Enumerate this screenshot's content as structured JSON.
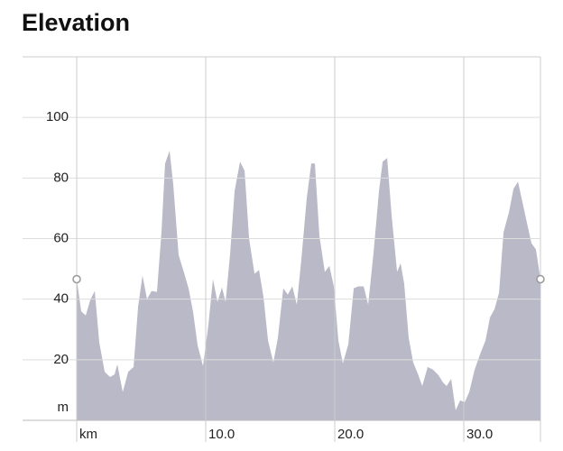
{
  "chart_data": {
    "type": "area",
    "title": "Elevation",
    "x": [
      0,
      0.35,
      0.7,
      1.05,
      1.4,
      1.75,
      2.17,
      2.59,
      2.94,
      3.15,
      3.57,
      3.99,
      4.41,
      4.76,
      5.1,
      5.45,
      5.8,
      6.22,
      6.57,
      6.85,
      7.2,
      7.48,
      7.9,
      8.32,
      8.67,
      9.02,
      9.37,
      9.79,
      10.21,
      10.56,
      10.91,
      11.26,
      11.54,
      11.89,
      12.24,
      12.66,
      13.01,
      13.36,
      13.78,
      14.13,
      14.48,
      14.83,
      15.24,
      15.59,
      16.01,
      16.36,
      16.71,
      17.06,
      17.41,
      17.83,
      18.18,
      18.46,
      18.81,
      19.23,
      19.58,
      19.93,
      20.28,
      20.63,
      21.05,
      21.47,
      21.82,
      22.24,
      22.59,
      23.01,
      23.43,
      23.71,
      24.06,
      24.41,
      24.83,
      25.1,
      25.38,
      25.73,
      26.08,
      26.43,
      26.78,
      27.2,
      27.62,
      28.04,
      28.39,
      28.67,
      29.02,
      29.37,
      29.72,
      30.07,
      30.42,
      30.84,
      31.26,
      31.68,
      32.03,
      32.38,
      32.73,
      33.08,
      33.5,
      33.85,
      34.2,
      34.55,
      34.9,
      35.24,
      35.59,
      35.94
    ],
    "values": [
      46.6,
      36,
      34.6,
      39.7,
      42.7,
      25.7,
      16,
      14.3,
      15.2,
      18.5,
      9.3,
      16,
      17.6,
      37.6,
      47.8,
      40,
      42.7,
      42.4,
      62,
      84.8,
      89,
      78,
      54.6,
      48.7,
      43.6,
      35.8,
      24.8,
      17.9,
      31.6,
      46.6,
      39.1,
      43.9,
      39.1,
      54.9,
      75.8,
      85.4,
      82.4,
      60,
      48.4,
      49.6,
      40.6,
      26.3,
      19.1,
      27.2,
      43.6,
      41.5,
      44.2,
      38.2,
      53.1,
      73.4,
      84.8,
      84.8,
      60.9,
      49,
      51,
      44.2,
      26.3,
      18.8,
      25.1,
      43.6,
      44.2,
      44.2,
      38.2,
      55.5,
      75.8,
      85.4,
      86.6,
      67.5,
      49,
      51.9,
      45.1,
      27.2,
      19.1,
      15.5,
      11.3,
      17.6,
      16.7,
      14.9,
      12.5,
      11.3,
      13.7,
      3.3,
      6.6,
      6,
      9.3,
      16.7,
      21.8,
      26.3,
      34,
      36.7,
      42.1,
      62.1,
      68.7,
      76.4,
      78.8,
      71.9,
      65.1,
      58.5,
      56.4,
      46.6
    ],
    "color": "#b9b9c7",
    "xlim": [
      0,
      35.94
    ],
    "ylim": [
      0,
      120
    ],
    "xticks": [
      {
        "value": 0,
        "label": "km"
      },
      {
        "value": 10,
        "label": "10.0"
      },
      {
        "value": 20,
        "label": "20.0"
      },
      {
        "value": 30,
        "label": "30.0"
      }
    ],
    "yticks": [
      {
        "value": 0,
        "label": "m"
      },
      20,
      40,
      60,
      80,
      100
    ],
    "grid": true
  }
}
